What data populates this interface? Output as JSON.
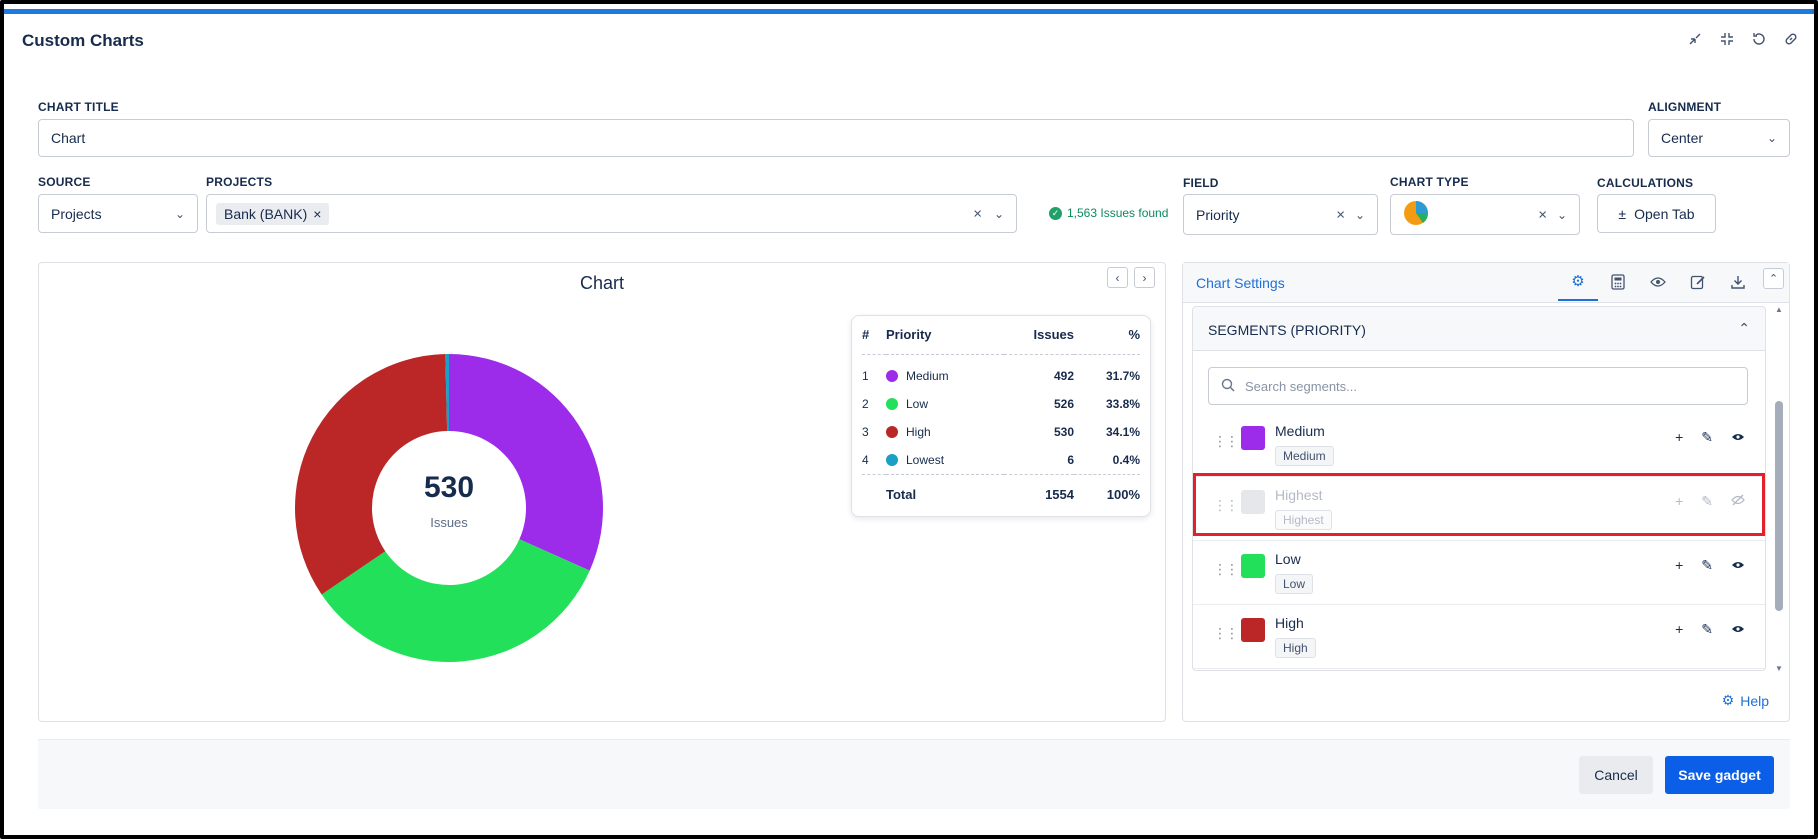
{
  "header": {
    "title": "Custom Charts"
  },
  "form": {
    "chart_title_label": "CHART TITLE",
    "chart_title_value": "Chart",
    "alignment_label": "ALIGNMENT",
    "alignment_value": "Center",
    "source_label": "SOURCE",
    "source_value": "Projects",
    "projects_label": "PROJECTS",
    "project_chip": "Bank (BANK)",
    "issues_found": "1,563 Issues found",
    "field_label": "FIELD",
    "field_value": "Priority",
    "chart_type_label": "CHART TYPE",
    "calculations_label": "CALCULATIONS",
    "open_tab_label": "Open Tab"
  },
  "chart": {
    "title": "Chart",
    "center_value": "530",
    "center_label": "Issues"
  },
  "chart_data": {
    "type": "pie",
    "title": "Chart",
    "categories": [
      "Medium",
      "Low",
      "High",
      "Lowest"
    ],
    "values": [
      492,
      526,
      530,
      6
    ],
    "colors": [
      "#9c2bea",
      "#22e05a",
      "#bb2727",
      "#1aa0c4"
    ],
    "center_value": "530",
    "center_label": "Issues"
  },
  "legend": {
    "headers": {
      "num": "#",
      "priority": "Priority",
      "issues": "Issues",
      "pct": "%"
    },
    "rows": [
      {
        "num": "1",
        "name": "Medium",
        "issues": "492",
        "pct": "31.7%",
        "color": "#9c2bea"
      },
      {
        "num": "2",
        "name": "Low",
        "issues": "526",
        "pct": "33.8%",
        "color": "#22e05a"
      },
      {
        "num": "3",
        "name": "High",
        "issues": "530",
        "pct": "34.1%",
        "color": "#bb2727"
      },
      {
        "num": "4",
        "name": "Lowest",
        "issues": "6",
        "pct": "0.4%",
        "color": "#1aa0c4"
      }
    ],
    "total_label": "Total",
    "total_issues": "1554",
    "total_pct": "100%"
  },
  "settings": {
    "title": "Chart Settings",
    "segments_title": "SEGMENTS (PRIORITY)",
    "search_placeholder": "Search segments...",
    "segments": [
      {
        "name": "Medium",
        "tag": "Medium",
        "color": "#9c2bea",
        "hidden": false
      },
      {
        "name": "Highest",
        "tag": "Highest",
        "color": "#e6e7ea",
        "hidden": true
      },
      {
        "name": "Low",
        "tag": "Low",
        "color": "#22e05a",
        "hidden": false
      },
      {
        "name": "High",
        "tag": "High",
        "color": "#bb2727",
        "hidden": false
      }
    ],
    "help_label": "Help"
  },
  "footer": {
    "cancel_label": "Cancel",
    "save_label": "Save gadget"
  }
}
